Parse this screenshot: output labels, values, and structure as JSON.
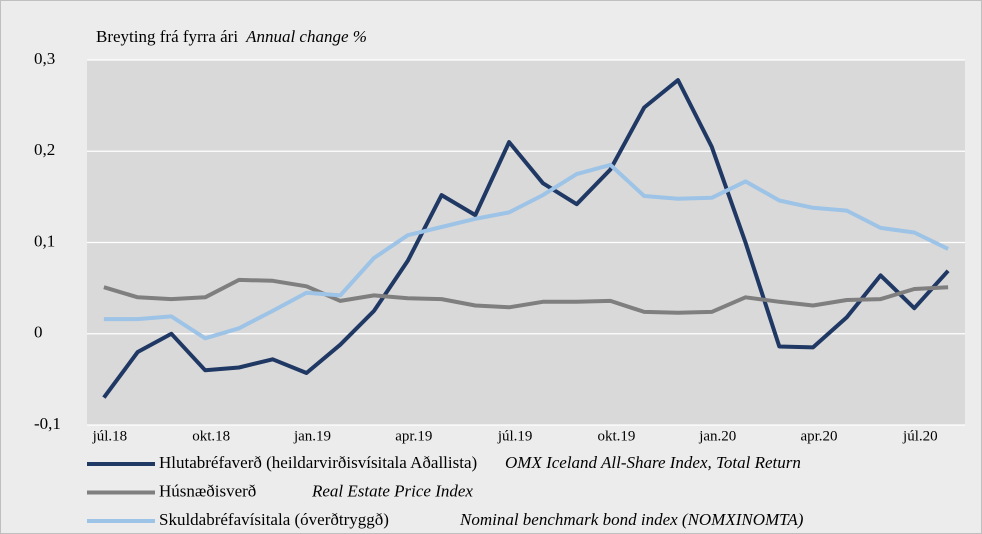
{
  "chart_data": {
    "type": "line",
    "title": "Breyting frá fyrra ári",
    "subtitle": "Annual change %",
    "categories": [
      "júl.18",
      null,
      null,
      "okt.18",
      null,
      null,
      "jan.19",
      null,
      null,
      "apr.19",
      null,
      null,
      "júl.19",
      null,
      null,
      "okt.19",
      null,
      null,
      "jan.20",
      null,
      null,
      "apr.20",
      null,
      null,
      "júl.20",
      null
    ],
    "series": [
      {
        "name": "Hlutabréfaverð (heildarvirðisvísitala Aðallista)",
        "name_en": "OMX Iceland All-Share Index, Total Return",
        "color": "#203864",
        "values": [
          -0.07,
          -0.02,
          0.0,
          -0.04,
          -0.037,
          -0.028,
          -0.043,
          -0.012,
          0.025,
          0.08,
          0.152,
          0.13,
          0.21,
          0.165,
          0.142,
          0.18,
          0.248,
          0.278,
          0.205,
          0.1,
          -0.014,
          -0.015,
          0.018,
          0.064,
          0.028,
          0.069
        ]
      },
      {
        "name": "Húsnæðisverð",
        "name_en": "Real Estate  Price Index",
        "color": "#7f7f7f",
        "values": [
          0.051,
          0.04,
          0.038,
          0.04,
          0.059,
          0.058,
          0.052,
          0.036,
          0.042,
          0.039,
          0.038,
          0.031,
          0.029,
          0.035,
          0.035,
          0.036,
          0.024,
          0.023,
          0.024,
          0.04,
          0.035,
          0.031,
          0.037,
          0.038,
          0.049,
          0.051
        ]
      },
      {
        "name": "Skuldabréfavísitala (óverðtryggð)",
        "name_en": "Nominal benchmark bond index (NOMXINOMTA)",
        "color": "#9dc3e6",
        "values": [
          0.016,
          0.016,
          0.019,
          -0.005,
          0.006,
          0.025,
          0.045,
          0.042,
          0.083,
          0.108,
          0.117,
          0.126,
          0.133,
          0.152,
          0.175,
          0.185,
          0.151,
          0.148,
          0.149,
          0.167,
          0.146,
          0.138,
          0.135,
          0.116,
          0.111,
          0.093
        ]
      }
    ],
    "ylim": [
      -0.1,
      0.3
    ],
    "yticks": [
      {
        "value": -0.1,
        "label": "-0,1"
      },
      0,
      {
        "value": 0.1,
        "label": "0,1"
      },
      {
        "value": 0.2,
        "label": "0,2"
      },
      {
        "value": 0.3,
        "label": "0,3"
      }
    ],
    "grid": true
  }
}
